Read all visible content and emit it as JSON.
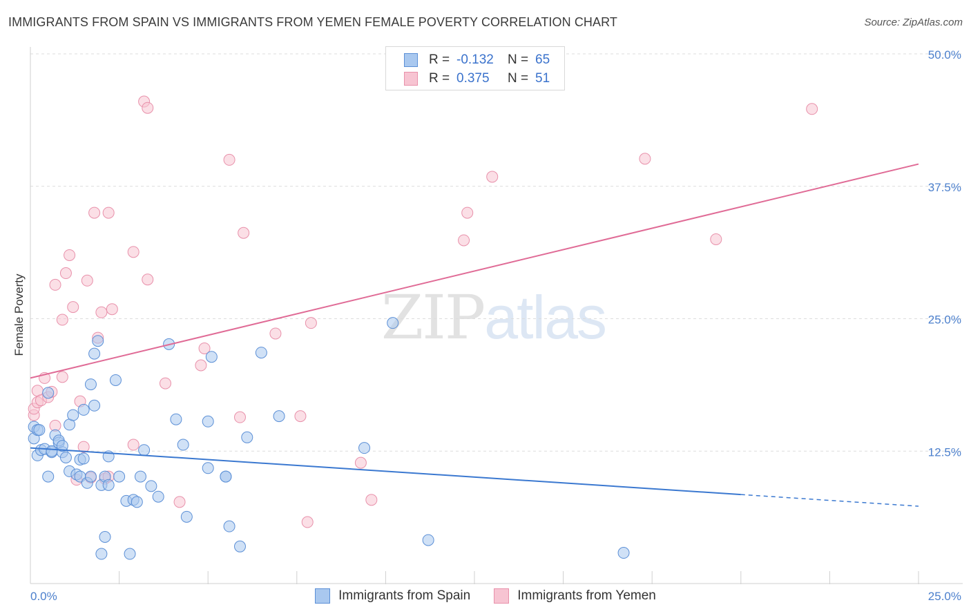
{
  "title": "IMMIGRANTS FROM SPAIN VS IMMIGRANTS FROM YEMEN FEMALE POVERTY CORRELATION CHART",
  "source": "Source: ZipAtlas.com",
  "watermark": {
    "zip": "ZIP",
    "atlas": "atlas"
  },
  "legend": {
    "r_label": "R =",
    "n_label": "N =",
    "rows": [
      {
        "r": "-0.132",
        "n": "65"
      },
      {
        "r": "0.375",
        "n": "51"
      }
    ]
  },
  "colors": {
    "spain_fill": "#a9c8ef",
    "spain_stroke": "#5b8fd6",
    "spain_line": "#3a78d0",
    "yemen_fill": "#f7c4d2",
    "yemen_stroke": "#e890aa",
    "yemen_line": "#e06b96",
    "tick_text": "#4b7fcc",
    "grid": "#dcdcdc"
  },
  "chart_data": {
    "type": "scatter",
    "xlabel": "",
    "ylabel": "Female Poverty",
    "xlim": [
      0,
      25
    ],
    "ylim": [
      0,
      50
    ],
    "x_tick_labels": [
      "0.0%",
      "25.0%"
    ],
    "y_ticks": [
      {
        "value": 12.5,
        "label": "12.5%"
      },
      {
        "value": 25.0,
        "label": "25.0%"
      },
      {
        "value": 37.5,
        "label": "37.5%"
      },
      {
        "value": 50.0,
        "label": "50.0%"
      }
    ],
    "grid": true,
    "legend_position": "bottom",
    "series": [
      {
        "name": "Immigrants from Spain",
        "points": [
          [
            0.1,
            14.8
          ],
          [
            0.1,
            13.7
          ],
          [
            0.2,
            14.5
          ],
          [
            0.2,
            12.1
          ],
          [
            0.3,
            12.6
          ],
          [
            0.4,
            12.7
          ],
          [
            0.5,
            10.1
          ],
          [
            0.5,
            18.0
          ],
          [
            0.6,
            12.4
          ],
          [
            0.7,
            14.0
          ],
          [
            0.8,
            13.3
          ],
          [
            0.8,
            13.5
          ],
          [
            0.9,
            12.4
          ],
          [
            0.9,
            13.0
          ],
          [
            1.0,
            11.9
          ],
          [
            1.1,
            10.6
          ],
          [
            1.1,
            15.0
          ],
          [
            1.2,
            15.9
          ],
          [
            1.3,
            10.3
          ],
          [
            1.4,
            11.7
          ],
          [
            1.4,
            10.1
          ],
          [
            1.5,
            16.4
          ],
          [
            1.5,
            11.8
          ],
          [
            1.6,
            9.5
          ],
          [
            1.7,
            10.1
          ],
          [
            1.7,
            18.8
          ],
          [
            1.8,
            16.8
          ],
          [
            1.8,
            21.7
          ],
          [
            1.9,
            22.9
          ],
          [
            2.0,
            9.3
          ],
          [
            2.0,
            2.8
          ],
          [
            2.1,
            4.4
          ],
          [
            2.1,
            10.1
          ],
          [
            2.2,
            9.3
          ],
          [
            2.2,
            12.0
          ],
          [
            2.4,
            19.2
          ],
          [
            2.5,
            10.1
          ],
          [
            2.7,
            7.8
          ],
          [
            2.8,
            2.8
          ],
          [
            2.9,
            7.9
          ],
          [
            3.0,
            7.7
          ],
          [
            3.1,
            10.1
          ],
          [
            3.2,
            12.6
          ],
          [
            3.4,
            9.2
          ],
          [
            3.6,
            8.2
          ],
          [
            3.9,
            22.6
          ],
          [
            4.1,
            15.5
          ],
          [
            4.3,
            13.1
          ],
          [
            4.4,
            6.3
          ],
          [
            5.0,
            10.9
          ],
          [
            5.0,
            15.3
          ],
          [
            5.1,
            21.4
          ],
          [
            5.5,
            10.1
          ],
          [
            5.5,
            10.1
          ],
          [
            5.6,
            5.4
          ],
          [
            5.9,
            3.5
          ],
          [
            6.1,
            13.8
          ],
          [
            6.5,
            21.8
          ],
          [
            7.0,
            15.8
          ],
          [
            9.4,
            12.8
          ],
          [
            10.2,
            24.6
          ],
          [
            11.2,
            4.1
          ],
          [
            16.7,
            2.9
          ],
          [
            0.25,
            14.5
          ],
          [
            0.6,
            12.5
          ]
        ]
      },
      {
        "name": "Immigrants from Yemen",
        "points": [
          [
            0.1,
            15.9
          ],
          [
            0.1,
            16.5
          ],
          [
            0.2,
            17.1
          ],
          [
            0.2,
            18.2
          ],
          [
            0.3,
            17.3
          ],
          [
            0.4,
            19.4
          ],
          [
            0.5,
            17.6
          ],
          [
            0.6,
            18.1
          ],
          [
            0.7,
            14.9
          ],
          [
            0.7,
            28.2
          ],
          [
            0.9,
            19.5
          ],
          [
            0.9,
            24.9
          ],
          [
            1.0,
            29.3
          ],
          [
            1.1,
            31.0
          ],
          [
            1.2,
            26.1
          ],
          [
            1.3,
            9.8
          ],
          [
            1.4,
            17.2
          ],
          [
            1.5,
            12.9
          ],
          [
            1.6,
            28.6
          ],
          [
            1.7,
            10.0
          ],
          [
            1.8,
            35.0
          ],
          [
            1.9,
            23.2
          ],
          [
            2.0,
            25.6
          ],
          [
            2.1,
            9.9
          ],
          [
            2.2,
            35.0
          ],
          [
            2.2,
            10.1
          ],
          [
            2.3,
            25.9
          ],
          [
            2.9,
            13.1
          ],
          [
            2.9,
            31.3
          ],
          [
            3.2,
            45.5
          ],
          [
            3.3,
            44.9
          ],
          [
            3.3,
            28.7
          ],
          [
            3.8,
            18.9
          ],
          [
            4.2,
            7.7
          ],
          [
            4.8,
            20.6
          ],
          [
            4.9,
            22.2
          ],
          [
            5.6,
            40.0
          ],
          [
            5.9,
            15.7
          ],
          [
            6.0,
            33.1
          ],
          [
            6.9,
            23.6
          ],
          [
            7.6,
            15.8
          ],
          [
            7.8,
            5.8
          ],
          [
            7.9,
            24.6
          ],
          [
            9.3,
            11.4
          ],
          [
            9.6,
            7.9
          ],
          [
            12.2,
            32.4
          ],
          [
            12.3,
            35.0
          ],
          [
            13.0,
            38.4
          ],
          [
            17.3,
            40.1
          ],
          [
            19.3,
            32.5
          ],
          [
            22.0,
            44.8
          ]
        ]
      }
    ],
    "trend_lines": [
      {
        "series": "Immigrants from Spain",
        "x": [
          0,
          25
        ],
        "y": [
          12.8,
          7.3
        ],
        "solid_until_x": 20
      },
      {
        "series": "Immigrants from Yemen",
        "x": [
          0,
          25
        ],
        "y": [
          19.4,
          39.6
        ]
      }
    ]
  }
}
